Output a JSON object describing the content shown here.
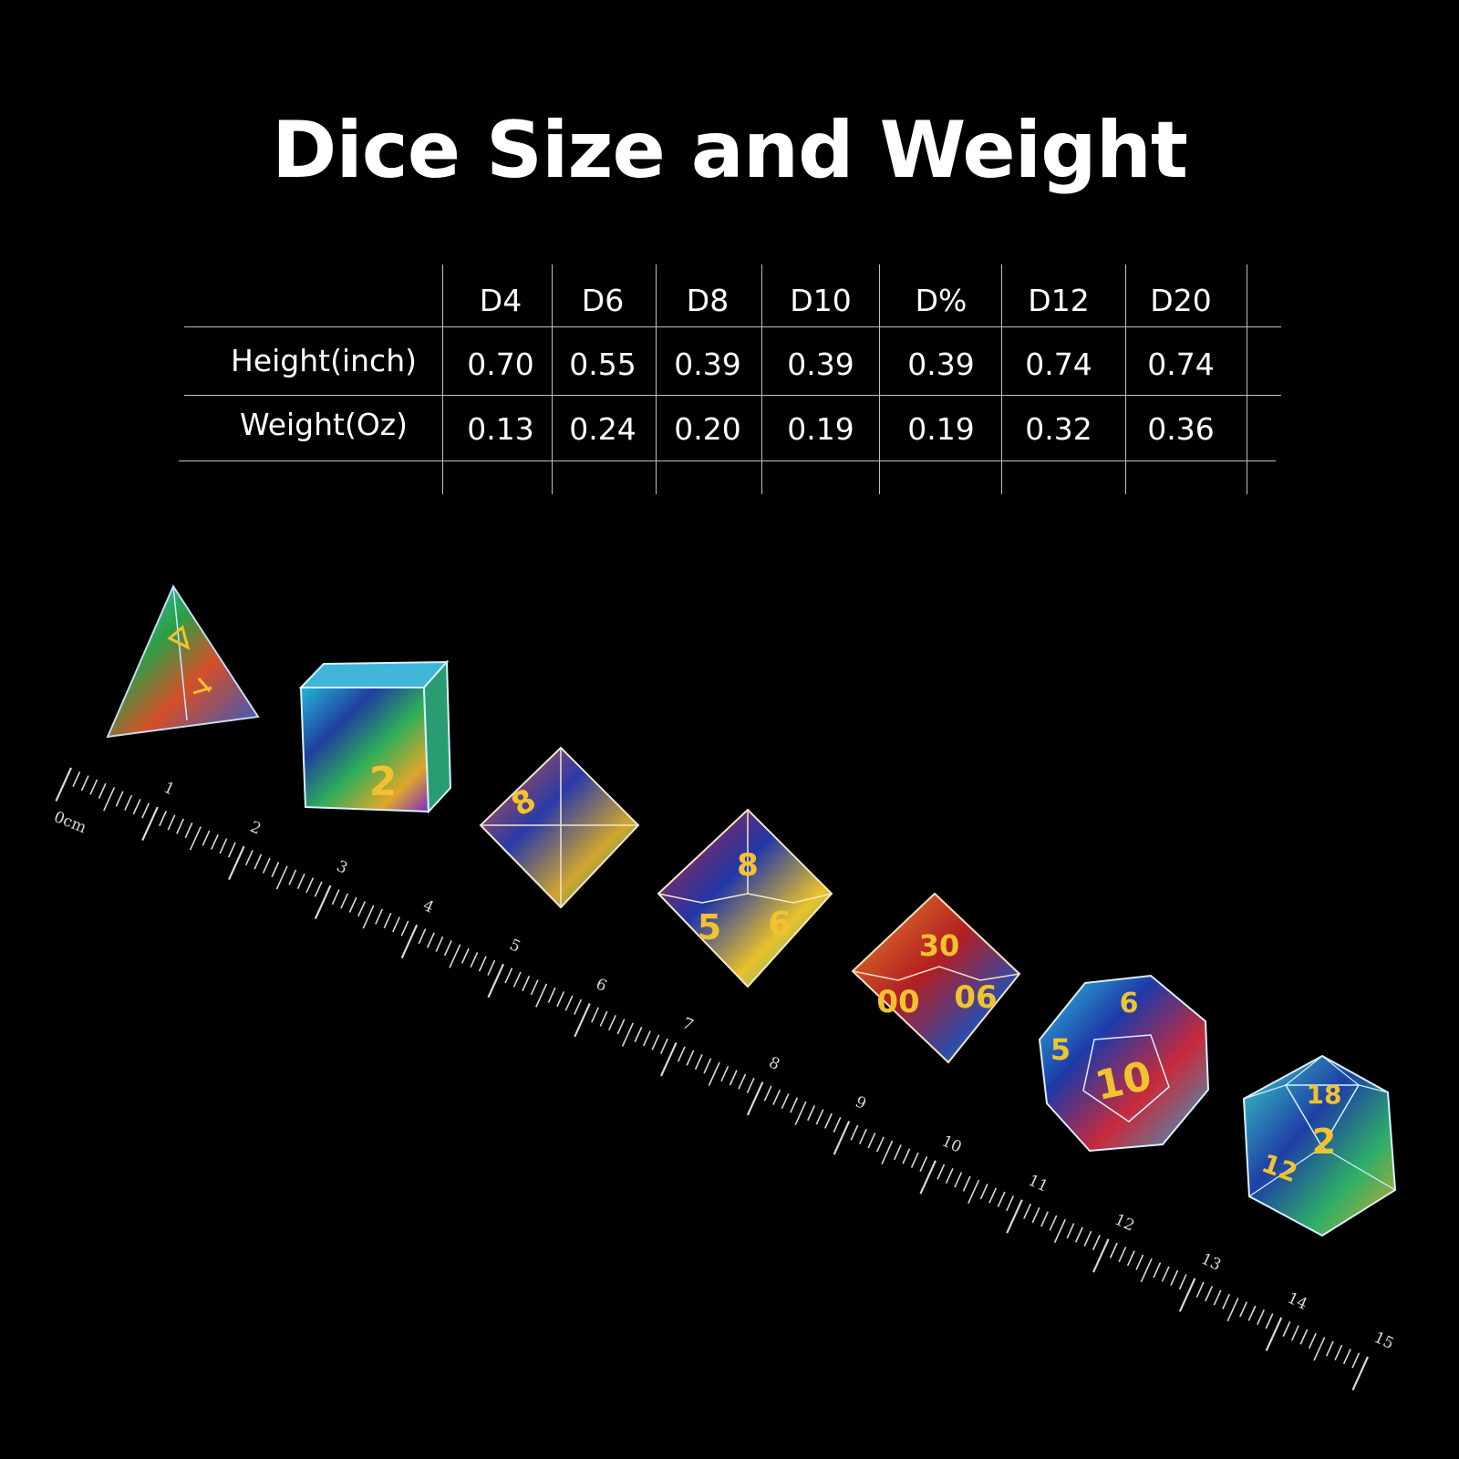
{
  "title": "Dice Size and Weight",
  "table": {
    "headers": [
      "D4",
      "D6",
      "D8",
      "D10",
      "D%",
      "D12",
      "D20"
    ],
    "rows": [
      {
        "label": "Height(inch)",
        "values": [
          "0.70",
          "0.55",
          "0.39",
          "0.39",
          "0.39",
          "0.74",
          "0.74"
        ]
      },
      {
        "label": "Weight(Oz)",
        "values": [
          "0.13",
          "0.24",
          "0.20",
          "0.19",
          "0.19",
          "0.32",
          "0.36"
        ]
      }
    ]
  },
  "ruler": {
    "unit_label": "0cm",
    "labels": [
      "1",
      "2",
      "3",
      "4",
      "5",
      "6",
      "7",
      "8",
      "9",
      "10",
      "11",
      "12",
      "13",
      "14",
      "15"
    ]
  },
  "dice_numerals": {
    "d6": "2",
    "d8": "8",
    "d10_left": "5",
    "d10_right": "6",
    "dpct_top": "30",
    "dpct_left": "00",
    "dpct_right": "06",
    "d12_top": "6",
    "d12_center": "10",
    "d12_left": "5",
    "d20_top": "18",
    "d20_center": "2",
    "d20_left": "12"
  },
  "colors": {
    "background": "#000000",
    "numeral_gold": "#f2c230",
    "ruler": "#d9d9d9"
  }
}
